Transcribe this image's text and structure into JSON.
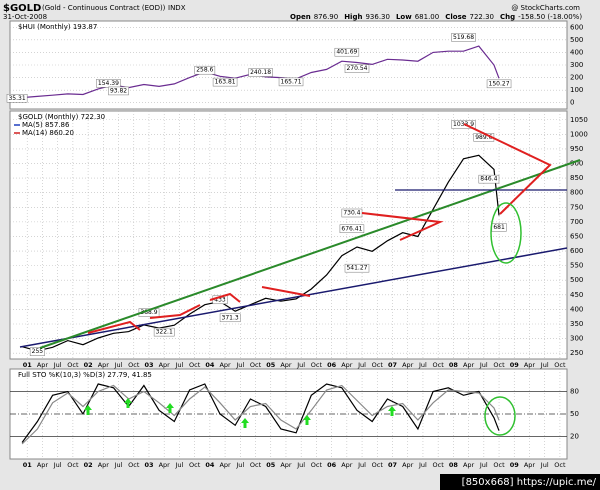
{
  "header": {
    "symbol": "$GOLD",
    "description": "(Gold - Continuous Contract (EOD))",
    "exchange": "INDX",
    "date": "31-Oct-2008",
    "watermark": "@ StockCharts.com",
    "quote": [
      {
        "label": "Open",
        "value": "876.90"
      },
      {
        "label": "High",
        "value": "936.30"
      },
      {
        "label": "Low",
        "value": "681.00"
      },
      {
        "label": "Close",
        "value": "722.30"
      },
      {
        "label": "Chg",
        "value": "-158.50 (-18.00%)"
      }
    ]
  },
  "footer": "[850x668] https://upic.me/",
  "chart_data": [
    {
      "type": "line",
      "title": "$HUI (Monthly) 193.87",
      "xlim": [
        "2000-10",
        "2009-11"
      ],
      "ylim": [
        -50,
        650
      ],
      "yticks": [
        0,
        100,
        200,
        300,
        400,
        500,
        600
      ],
      "grid": true,
      "x": [
        "2000-12",
        "2001-03",
        "2001-06",
        "2001-09",
        "2001-12",
        "2002-03",
        "2002-06",
        "2002-09",
        "2002-12",
        "2003-03",
        "2003-06",
        "2003-09",
        "2003-12",
        "2004-03",
        "2004-06",
        "2004-09",
        "2004-12",
        "2005-03",
        "2005-06",
        "2005-09",
        "2005-12",
        "2006-03",
        "2006-06",
        "2006-09",
        "2006-12",
        "2007-03",
        "2007-06",
        "2007-09",
        "2007-12",
        "2008-03",
        "2008-06",
        "2008-09",
        "2008-10"
      ],
      "series": [
        {
          "name": "$HUI",
          "color": "#6a2c91",
          "values": [
            41,
            50,
            60,
            70,
            65,
            110,
            140,
            120,
            145,
            130,
            150,
            200,
            245,
            210,
            195,
            225,
            205,
            200,
            190,
            240,
            265,
            330,
            320,
            305,
            345,
            340,
            330,
            400,
            410,
            410,
            450,
            300,
            193.87
          ]
        }
      ],
      "annotations": [
        {
          "x": "2000-11",
          "value": 35.31
        },
        {
          "x": "2002-05",
          "value": 154.39
        },
        {
          "x": "2002-07",
          "value": 93.82
        },
        {
          "x": "2003-12",
          "value": 258.6
        },
        {
          "x": "2004-04",
          "value": 163.81
        },
        {
          "x": "2004-11",
          "value": 240.18
        },
        {
          "x": "2005-05",
          "value": 165.71
        },
        {
          "x": "2006-04",
          "value": 401.69
        },
        {
          "x": "2006-06",
          "value": 270.54
        },
        {
          "x": "2008-03",
          "value": 519.68
        },
        {
          "x": "2008-10",
          "value": 150.27
        }
      ]
    },
    {
      "type": "line",
      "title": "$GOLD (Monthly) 722.30",
      "legend": [
        {
          "name": "MA(5) 857.86",
          "color": "#1f3fbf"
        },
        {
          "name": "MA(14) 860.20",
          "color": "#d02020"
        }
      ],
      "xlim": [
        "2000-10",
        "2009-11"
      ],
      "ylim": [
        230,
        1080
      ],
      "yticks": [
        250,
        300,
        350,
        400,
        450,
        500,
        550,
        600,
        650,
        700,
        750,
        800,
        850,
        900,
        950,
        1000,
        1050
      ],
      "grid": true,
      "x": [
        "2000-12",
        "2001-03",
        "2001-06",
        "2001-09",
        "2001-12",
        "2002-03",
        "2002-06",
        "2002-09",
        "2002-12",
        "2003-03",
        "2003-06",
        "2003-09",
        "2003-12",
        "2004-03",
        "2004-06",
        "2004-09",
        "2004-12",
        "2005-03",
        "2005-06",
        "2005-09",
        "2005-12",
        "2006-03",
        "2006-06",
        "2006-09",
        "2006-12",
        "2007-03",
        "2007-06",
        "2007-09",
        "2007-12",
        "2008-03",
        "2008-06",
        "2008-09",
        "2008-10"
      ],
      "series": [
        {
          "name": "$GOLD",
          "color": "#000000",
          "values": [
            272,
            258,
            270,
            293,
            279,
            302,
            318,
            324,
            347,
            336,
            346,
            384,
            416,
            427,
            394,
            416,
            438,
            428,
            436,
            470,
            518,
            584,
            614,
            599,
            635,
            663,
            650,
            743,
            836,
            916,
            928,
            880,
            722.3
          ]
        }
      ],
      "annotations": [
        {
          "x": "2001-03",
          "value": 255.0
        },
        {
          "x": "2003-01",
          "value": 388.9
        },
        {
          "x": "2003-04",
          "value": 322.1
        },
        {
          "x": "2004-03",
          "value": 433.0
        },
        {
          "x": "2004-05",
          "value": 371.3
        },
        {
          "x": "2006-05",
          "value": 730.4
        },
        {
          "x": "2006-05",
          "value": 676.41
        },
        {
          "x": "2006-06",
          "value": 541.27
        },
        {
          "x": "2008-03",
          "value": 1033.9
        },
        {
          "x": "2008-07",
          "value": 989.6
        },
        {
          "x": "2008-08",
          "value": 846.4
        },
        {
          "x": "2008-10",
          "value": 681.0
        }
      ],
      "xticks": [
        {
          "value": "2001-01",
          "label": "01"
        },
        {
          "value": "2001-04",
          "label": "Apr"
        },
        {
          "value": "2001-07",
          "label": "Jul"
        },
        {
          "value": "2001-10",
          "label": "Oct"
        },
        {
          "value": "2002-01",
          "label": "02"
        },
        {
          "value": "2002-04",
          "label": "Apr"
        },
        {
          "value": "2002-07",
          "label": "Jul"
        },
        {
          "value": "2002-10",
          "label": "Oct"
        },
        {
          "value": "2003-01",
          "label": "03"
        },
        {
          "value": "2003-04",
          "label": "Apr"
        },
        {
          "value": "2003-07",
          "label": "Jul"
        },
        {
          "value": "2003-10",
          "label": "Oct"
        },
        {
          "value": "2004-01",
          "label": "04"
        },
        {
          "value": "2004-04",
          "label": "Apr"
        },
        {
          "value": "2004-07",
          "label": "Jul"
        },
        {
          "value": "2004-10",
          "label": "Oct"
        },
        {
          "value": "2005-01",
          "label": "05"
        },
        {
          "value": "2005-04",
          "label": "Apr"
        },
        {
          "value": "2005-07",
          "label": "Jul"
        },
        {
          "value": "2005-10",
          "label": "Oct"
        },
        {
          "value": "2006-01",
          "label": "06"
        },
        {
          "value": "2006-04",
          "label": "Apr"
        },
        {
          "value": "2006-07",
          "label": "Jul"
        },
        {
          "value": "2006-10",
          "label": "Oct"
        },
        {
          "value": "2007-01",
          "label": "07"
        },
        {
          "value": "2007-04",
          "label": "Apr"
        },
        {
          "value": "2007-07",
          "label": "Jul"
        },
        {
          "value": "2007-10",
          "label": "Oct"
        },
        {
          "value": "2008-01",
          "label": "08"
        },
        {
          "value": "2008-04",
          "label": "Apr"
        },
        {
          "value": "2008-07",
          "label": "Jul"
        },
        {
          "value": "2008-10",
          "label": "Oct"
        },
        {
          "value": "2009-01",
          "label": "09"
        },
        {
          "value": "2009-04",
          "label": "Apr"
        },
        {
          "value": "2009-07",
          "label": "Jul"
        },
        {
          "value": "2009-10",
          "label": "Oct"
        }
      ]
    },
    {
      "type": "line",
      "title": "Full STO %K(10,3) %D(3) 27.79, 41.85",
      "xlim": [
        "2000-10",
        "2009-11"
      ],
      "ylim": [
        -10,
        110
      ],
      "yticks": [
        20,
        50,
        80
      ],
      "grid": true,
      "x": [
        "2000-12",
        "2001-03",
        "2001-06",
        "2001-09",
        "2001-12",
        "2002-03",
        "2002-06",
        "2002-09",
        "2002-12",
        "2003-03",
        "2003-06",
        "2003-09",
        "2003-12",
        "2004-03",
        "2004-06",
        "2004-09",
        "2004-12",
        "2005-03",
        "2005-06",
        "2005-09",
        "2005-12",
        "2006-03",
        "2006-06",
        "2006-09",
        "2006-12",
        "2007-03",
        "2007-06",
        "2007-09",
        "2007-12",
        "2008-03",
        "2008-06",
        "2008-09",
        "2008-10"
      ],
      "series": [
        {
          "name": "%K",
          "color": "#000000",
          "values": [
            12,
            40,
            75,
            80,
            50,
            90,
            85,
            60,
            88,
            55,
            40,
            82,
            90,
            50,
            35,
            70,
            60,
            30,
            25,
            75,
            90,
            85,
            55,
            40,
            70,
            60,
            30,
            80,
            85,
            75,
            80,
            45,
            27.79
          ]
        },
        {
          "name": "%D",
          "color": "#888888",
          "values": [
            10,
            30,
            65,
            78,
            60,
            80,
            88,
            70,
            80,
            65,
            48,
            70,
            86,
            65,
            42,
            60,
            64,
            42,
            30,
            55,
            82,
            88,
            68,
            48,
            60,
            64,
            42,
            65,
            82,
            80,
            78,
            58,
            41.85
          ]
        }
      ],
      "xticks": [
        {
          "value": "2001-01",
          "label": "01"
        },
        {
          "value": "2001-04",
          "label": "Apr"
        },
        {
          "value": "2001-07",
          "label": "Jul"
        },
        {
          "value": "2001-10",
          "label": "Oct"
        },
        {
          "value": "2002-01",
          "label": "02"
        },
        {
          "value": "2002-04",
          "label": "Apr"
        },
        {
          "value": "2002-07",
          "label": "Jul"
        },
        {
          "value": "2002-10",
          "label": "Oct"
        },
        {
          "value": "2003-01",
          "label": "03"
        },
        {
          "value": "2003-04",
          "label": "Apr"
        },
        {
          "value": "2003-07",
          "label": "Jul"
        },
        {
          "value": "2003-10",
          "label": "Oct"
        },
        {
          "value": "2004-01",
          "label": "04"
        },
        {
          "value": "2004-04",
          "label": "Apr"
        },
        {
          "value": "2004-07",
          "label": "Jul"
        },
        {
          "value": "2004-10",
          "label": "Oct"
        },
        {
          "value": "2005-01",
          "label": "05"
        },
        {
          "value": "2005-04",
          "label": "Apr"
        },
        {
          "value": "2005-07",
          "label": "Jul"
        },
        {
          "value": "2005-10",
          "label": "Oct"
        },
        {
          "value": "2006-01",
          "label": "06"
        },
        {
          "value": "2006-04",
          "label": "Apr"
        },
        {
          "value": "2006-07",
          "label": "Jul"
        },
        {
          "value": "2006-10",
          "label": "Oct"
        },
        {
          "value": "2007-01",
          "label": "07"
        },
        {
          "value": "2007-04",
          "label": "Apr"
        },
        {
          "value": "2007-07",
          "label": "Jul"
        },
        {
          "value": "2007-10",
          "label": "Oct"
        },
        {
          "value": "2008-01",
          "label": "08"
        },
        {
          "value": "2008-04",
          "label": "Apr"
        },
        {
          "value": "2008-07",
          "label": "Jul"
        },
        {
          "value": "2008-10",
          "label": "Oct"
        },
        {
          "value": "2009-01",
          "label": "09"
        },
        {
          "value": "2009-04",
          "label": "Apr"
        },
        {
          "value": "2009-07",
          "label": "Jul"
        },
        {
          "value": "2009-10",
          "label": "Oct"
        }
      ]
    }
  ]
}
